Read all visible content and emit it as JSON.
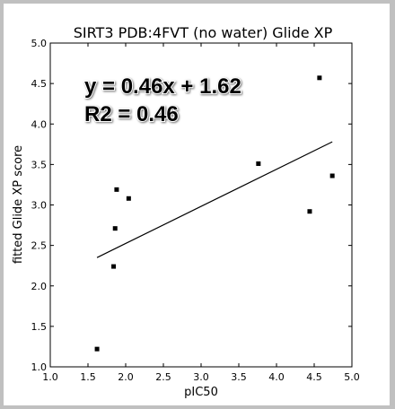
{
  "chart_data": {
    "type": "scatter",
    "title": "SIRT3 PDB:4FVT (no water) Glide XP",
    "xlabel": "pIC50",
    "ylabel": "fitted Glide XP score",
    "xlim": [
      1.0,
      5.0
    ],
    "ylim": [
      1.0,
      5.0
    ],
    "xticks": [
      "1.0",
      "1.5",
      "2.0",
      "2.5",
      "3.0",
      "3.5",
      "4.0",
      "4.5",
      "5.0"
    ],
    "yticks": [
      "1.0",
      "1.5",
      "2.0",
      "2.5",
      "3.0",
      "3.5",
      "4.0",
      "4.5",
      "5.0"
    ],
    "grid": false,
    "legend": "none",
    "marker": "square",
    "marker_color": "#000000",
    "points": [
      {
        "x": 1.62,
        "y": 1.22
      },
      {
        "x": 1.84,
        "y": 2.24
      },
      {
        "x": 1.86,
        "y": 2.71
      },
      {
        "x": 1.88,
        "y": 3.19
      },
      {
        "x": 2.04,
        "y": 3.08
      },
      {
        "x": 3.76,
        "y": 3.51
      },
      {
        "x": 4.44,
        "y": 2.92
      },
      {
        "x": 4.57,
        "y": 4.57
      },
      {
        "x": 4.74,
        "y": 3.36
      }
    ],
    "fit_line": {
      "x": [
        1.62,
        4.74
      ],
      "y": [
        2.35,
        3.78
      ],
      "color": "#000000"
    },
    "annotations": [
      "y = 0.46x + 1.62",
      "R2 = 0.46"
    ]
  },
  "colors": {
    "outer_background": "#c0c0c0",
    "figure_background": "#ffffff"
  }
}
